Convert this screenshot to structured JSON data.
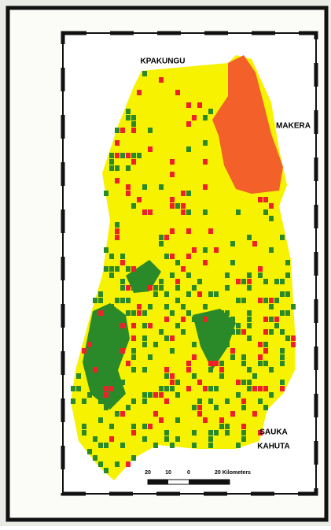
{
  "map": {
    "places": [
      "KPAKUNGU",
      "MAKERA",
      "SAUKA",
      "KAHUTA"
    ],
    "scale_bar": {
      "labels": [
        "20",
        "10",
        "0",
        "20 Kilometers"
      ]
    }
  }
}
